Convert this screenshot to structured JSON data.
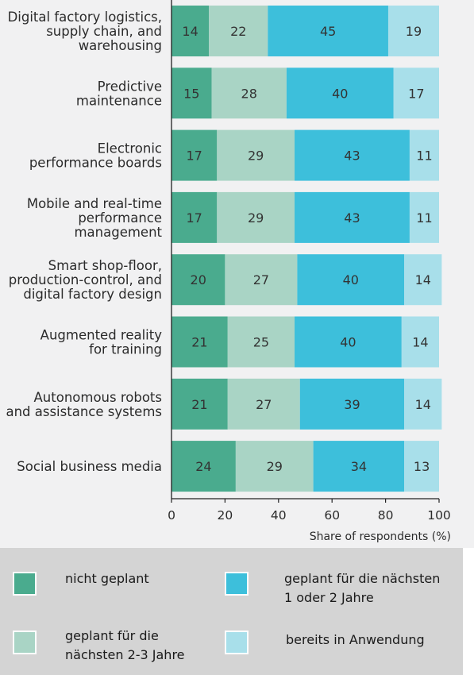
{
  "chart_data": {
    "type": "bar",
    "orientation": "horizontal",
    "stacked": true,
    "categories": [
      "Digital factory logistics,\nsupply chain, and\nwarehousing",
      "Predictive\nmaintenance",
      "Electronic\nperformance boards",
      "Mobile and real-time\nperformance\nmanagement",
      "Smart shop-floor,\nproduction-control, and\ndigital factory design",
      "Augmented reality\nfor training",
      "Autonomous robots\nand assistance systems",
      "Social business media"
    ],
    "series": [
      {
        "name": "nicht geplant",
        "values": [
          14,
          15,
          17,
          17,
          20,
          21,
          21,
          24
        ]
      },
      {
        "name": "geplant für die nächsten 2-3 Jahre",
        "values": [
          22,
          28,
          29,
          29,
          27,
          25,
          27,
          29
        ]
      },
      {
        "name": "geplant für die nächsten 1  oder 2 Jahre",
        "values": [
          45,
          40,
          43,
          43,
          40,
          40,
          39,
          34
        ]
      },
      {
        "name": "bereits in Anwendung",
        "values": [
          19,
          17,
          11,
          11,
          14,
          14,
          14,
          13
        ]
      }
    ],
    "xlabel": "Share of respondents (%)",
    "xlim": [
      0,
      100
    ],
    "xticks": [
      "0",
      "20",
      "40",
      "60",
      "80",
      "100"
    ],
    "colors": [
      "#4aab8e",
      "#a9d4c5",
      "#3dbfdb",
      "#a8dfea"
    ],
    "grid": false,
    "legend_position": "bottom"
  },
  "legend": {
    "items": [
      {
        "lines": [
          "nicht geplant"
        ],
        "color": "#4aab8e"
      },
      {
        "lines": [
          "geplant für die nächsten",
          "1  oder 2 Jahre"
        ],
        "color": "#3dbfdb"
      },
      {
        "lines": [
          "geplant für die",
          "nächsten 2-3 Jahre"
        ],
        "color": "#a9d4c5"
      },
      {
        "lines": [
          "bereits in Anwendung"
        ],
        "color": "#a8dfea"
      }
    ]
  }
}
